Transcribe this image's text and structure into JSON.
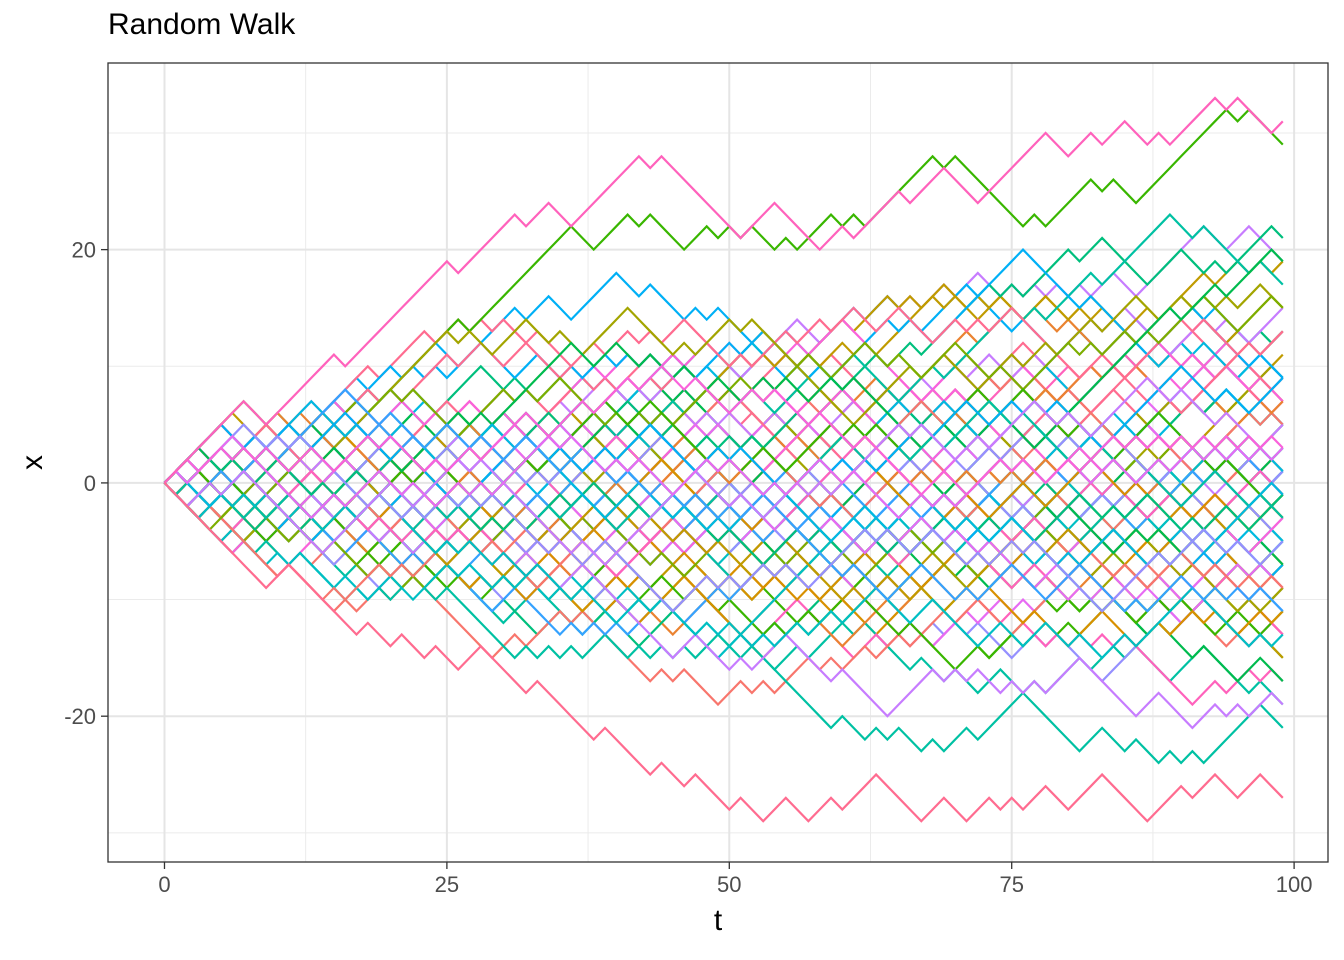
{
  "chart_data": {
    "type": "line",
    "title": "Random Walk",
    "xlabel": "t",
    "ylabel": "x",
    "xlim": [
      -5,
      103
    ],
    "ylim": [
      -32.5,
      36
    ],
    "xticks": [
      0,
      25,
      50,
      75,
      100
    ],
    "yticks": [
      -20,
      0,
      20
    ],
    "x_tick_labels": [
      "0",
      "25",
      "50",
      "75",
      "100"
    ],
    "y_tick_labels": [
      "-20",
      "0",
      "20"
    ],
    "grid": true,
    "legend": "none",
    "steps": 99,
    "n_series": 100,
    "series_note": "simple ±1 random walks starting at x=0, t=0..99",
    "colors": [
      "#F8766D",
      "#EA8331",
      "#D89000",
      "#C09B00",
      "#A3A500",
      "#7CAE00",
      "#39B600",
      "#00BB4E",
      "#00BF7D",
      "#00C1A3",
      "#00BFC4",
      "#00BAE0",
      "#00B0F6",
      "#35A2FF",
      "#9590FF",
      "#C77CFF",
      "#E76BF3",
      "#FA62DB",
      "#FF62BC",
      "#FF6C90"
    ],
    "series": [
      {
        "values": [
          0,
          1,
          2,
          3,
          4,
          5,
          6,
          7,
          6,
          5,
          6,
          7,
          8,
          9,
          10,
          11,
          10,
          11,
          12,
          13,
          14,
          15,
          16,
          17,
          18,
          19,
          18,
          19,
          20,
          21,
          22,
          23,
          22,
          23,
          24,
          23,
          22,
          23,
          24,
          25,
          26,
          27,
          28,
          27,
          28,
          27,
          26,
          25,
          24,
          23,
          22,
          21,
          22,
          23,
          24,
          23,
          22,
          21,
          20,
          21,
          22,
          21,
          22,
          23,
          24,
          25,
          24,
          25,
          26,
          27,
          26,
          25,
          24,
          25,
          26,
          27,
          28,
          29,
          30,
          29,
          28,
          29,
          30,
          29,
          30,
          31,
          30,
          29,
          30,
          29,
          30,
          31,
          32,
          33,
          32,
          33,
          32,
          31,
          30,
          31
        ]
      },
      {
        "values": [
          0,
          -1,
          -2,
          -3,
          -4,
          -5,
          -6,
          -7,
          -8,
          -9,
          -8,
          -7,
          -8,
          -9,
          -10,
          -11,
          -12,
          -13,
          -12,
          -13,
          -14,
          -13,
          -14,
          -15,
          -14,
          -15,
          -16,
          -15,
          -14,
          -15,
          -16,
          -17,
          -18,
          -17,
          -18,
          -19,
          -20,
          -21,
          -22,
          -21,
          -22,
          -23,
          -24,
          -25,
          -24,
          -25,
          -26,
          -25,
          -26,
          -27,
          -28,
          -27,
          -28,
          -29,
          -28,
          -27,
          -28,
          -29,
          -28,
          -27,
          -28,
          -27,
          -26,
          -25,
          -26,
          -27,
          -28,
          -29,
          -28,
          -27,
          -28,
          -29,
          -28,
          -27,
          -28,
          -27,
          -28,
          -27,
          -26,
          -27,
          -28,
          -27,
          -26,
          -25,
          -26,
          -27,
          -28,
          -29,
          -28,
          -27,
          -26,
          -27,
          -26,
          -25,
          -26,
          -27,
          -26,
          -25,
          -26,
          -27
        ]
      }
    ]
  }
}
